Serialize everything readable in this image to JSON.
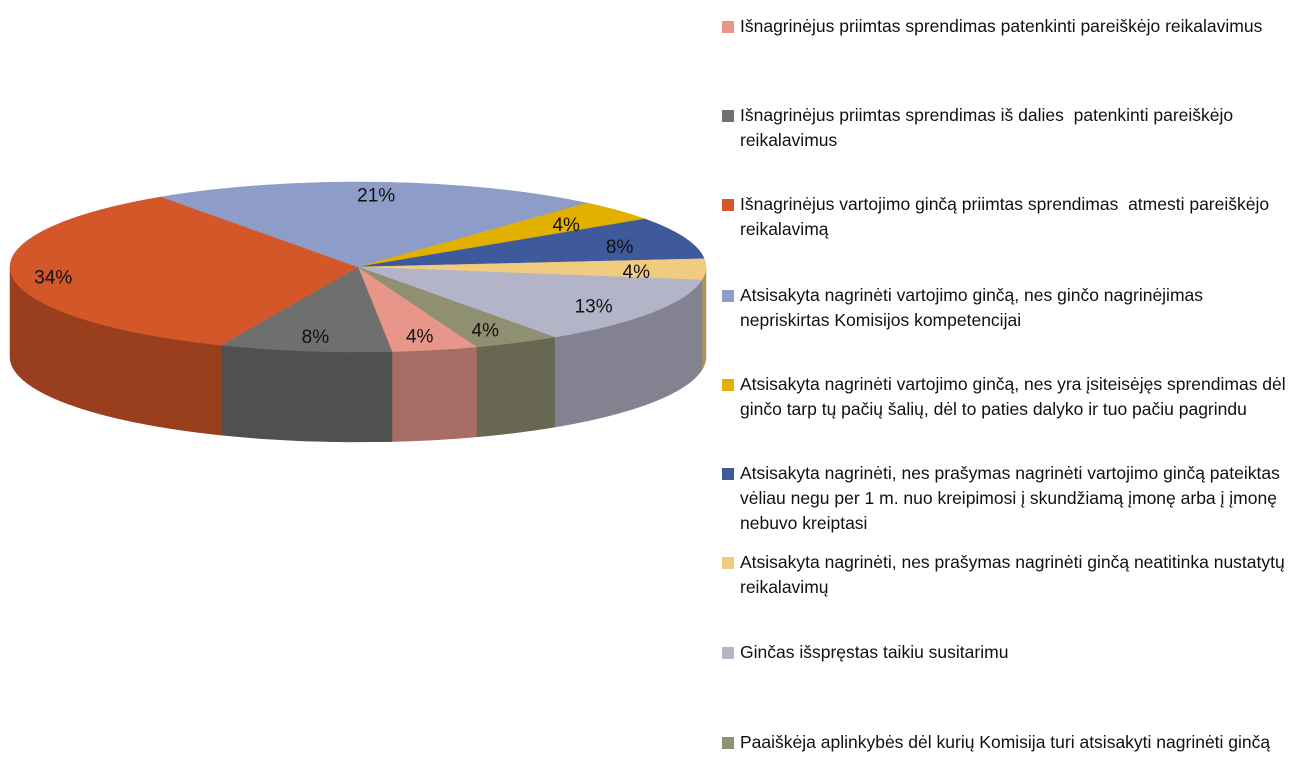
{
  "chart_data": {
    "type": "pie",
    "three_d": true,
    "categories": [
      "Išnagrinėjus priimtas sprendimas patenkinti pareiškėjo reikalavimus",
      "Išnagrinėjus priimtas sprendimas iš dalies  patenkinti pareiškėjo reikalavimus",
      "Išnagrinėjus vartojimo ginčą priimtas sprendimas  atmesti pareiškėjo reikalavimą",
      "Atsisakyta nagrinėti vartojimo ginčą, nes ginčo nagrinėjimas nepriskirtas Komisijos kompetencijai",
      "Atsisakyta nagrinėti vartojimo ginčą, nes yra įsiteisėjęs sprendimas dėl ginčo tarp tų pačių šalių, dėl to paties dalyko ir tuo pačiu pagrindu",
      "Atsisakyta nagrinėti, nes prašymas nagrinėti vartojimo ginčą pateiktas vėliau negu per 1 m. nuo kreipimosi į skundžiamą įmonę arba į įmonę nebuvo kreiptasi",
      "Atsisakyta nagrinėti, nes prašymas nagrinėti ginčą neatitinka nustatytų reikalavimų",
      "Ginčas išspręstas taikiu susitarimu",
      "Paaiškėja aplinkybės dėl kurių Komisija turi atsisakyti nagrinėti ginčą"
    ],
    "values": [
      4,
      8,
      34,
      21,
      4,
      8,
      4,
      13,
      4
    ],
    "value_labels": [
      "4%",
      "8%",
      "34%",
      "21%",
      "4%",
      "8%",
      "4%",
      "13%",
      "4%"
    ],
    "colors": [
      "#e8968a",
      "#6f6f6f",
      "#d4572a",
      "#8e9cc8",
      "#e2b100",
      "#3f5a9a",
      "#f0cb80",
      "#b4b4c9",
      "#8f8f72"
    ],
    "legend": "right"
  }
}
